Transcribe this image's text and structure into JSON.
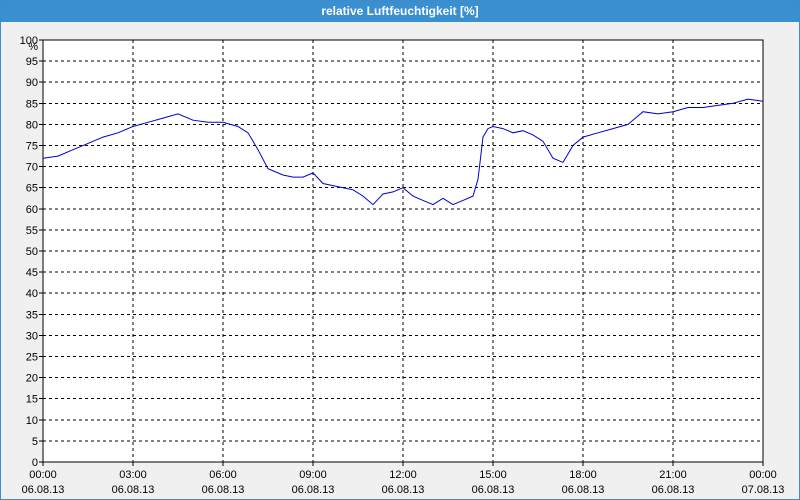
{
  "window": {
    "title": "relative Luftfeuchtigkeit [%]"
  },
  "chart_data": {
    "type": "line",
    "title": "relative Luftfeuchtigkeit [%]",
    "ylabel": "%",
    "xlabel": "",
    "ylim": [
      0,
      100
    ],
    "xlim": [
      "06.08.13 00:00",
      "07.08.13 00:00"
    ],
    "grid": true,
    "x_tick_labels": [
      {
        "time": "00:00",
        "date": "06.08.13"
      },
      {
        "time": "03:00",
        "date": "06.08.13"
      },
      {
        "time": "06:00",
        "date": "06.08.13"
      },
      {
        "time": "09:00",
        "date": "06.08.13"
      },
      {
        "time": "12:00",
        "date": "06.08.13"
      },
      {
        "time": "15:00",
        "date": "06.08.13"
      },
      {
        "time": "18:00",
        "date": "06.08.13"
      },
      {
        "time": "21:00",
        "date": "06.08.13"
      },
      {
        "time": "00:00",
        "date": "07.08.13"
      }
    ],
    "y_ticks": [
      0,
      5,
      10,
      15,
      20,
      25,
      30,
      35,
      40,
      45,
      50,
      55,
      60,
      65,
      70,
      75,
      80,
      85,
      90,
      95,
      100
    ],
    "series": [
      {
        "color": "#0000cc",
        "x": [
          "06.08.13 00:00",
          "06.08.13 00:30",
          "06.08.13 01:00",
          "06.08.13 01:30",
          "06.08.13 02:00",
          "06.08.13 02:30",
          "06.08.13 03:00",
          "06.08.13 03:30",
          "06.08.13 04:00",
          "06.08.13 04:30",
          "06.08.13 05:00",
          "06.08.13 05:30",
          "06.08.13 06:00",
          "06.08.13 06:30",
          "06.08.13 06:50",
          "06.08.13 07:10",
          "06.08.13 07:30",
          "06.08.13 08:00",
          "06.08.13 08:20",
          "06.08.13 08:40",
          "06.08.13 09:00",
          "06.08.13 09:20",
          "06.08.13 09:40",
          "06.08.13 10:00",
          "06.08.13 10:20",
          "06.08.13 10:40",
          "06.08.13 11:00",
          "06.08.13 11:20",
          "06.08.13 11:40",
          "06.08.13 12:00",
          "06.08.13 12:20",
          "06.08.13 12:40",
          "06.08.13 13:00",
          "06.08.13 13:20",
          "06.08.13 13:40",
          "06.08.13 14:00",
          "06.08.13 14:20",
          "06.08.13 14:30",
          "06.08.13 14:40",
          "06.08.13 14:50",
          "06.08.13 15:00",
          "06.08.13 15:20",
          "06.08.13 15:40",
          "06.08.13 16:00",
          "06.08.13 16:20",
          "06.08.13 16:40",
          "06.08.13 17:00",
          "06.08.13 17:20",
          "06.08.13 17:40",
          "06.08.13 18:00",
          "06.08.13 18:30",
          "06.08.13 19:00",
          "06.08.13 19:30",
          "06.08.13 20:00",
          "06.08.13 20:30",
          "06.08.13 21:00",
          "06.08.13 21:30",
          "06.08.13 22:00",
          "06.08.13 22:30",
          "06.08.13 23:00",
          "06.08.13 23:30",
          "07.08.13 00:00"
        ],
        "values": [
          72,
          72.5,
          74,
          75.5,
          77,
          78,
          79.5,
          80.5,
          81.5,
          82.5,
          81,
          80.5,
          80.5,
          79.5,
          78,
          74,
          69.5,
          68,
          67.5,
          67.5,
          68.5,
          66,
          65.5,
          65,
          64.5,
          63,
          61,
          63.5,
          64,
          65,
          63,
          62,
          61,
          62.5,
          61,
          62,
          63,
          67,
          77,
          79,
          79.5,
          79,
          78,
          78.5,
          77.5,
          76,
          72,
          71,
          75,
          77,
          78,
          79,
          80,
          83,
          82.5,
          83,
          84,
          84,
          84.5,
          85,
          86,
          85.5
        ]
      }
    ]
  }
}
